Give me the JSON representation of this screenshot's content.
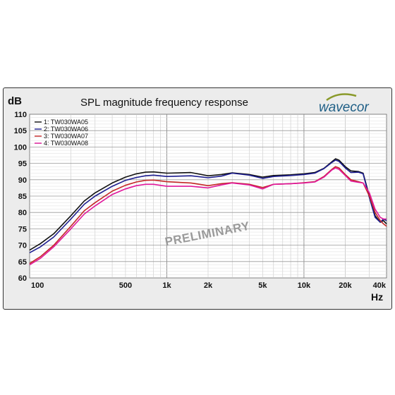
{
  "brand": "wavecor",
  "watermark": "PRELIMINARY",
  "chart_data": {
    "type": "line",
    "title": "SPL magnitude frequency response",
    "ylabel": "dB",
    "xlabel": "Hz",
    "x_scale": "log",
    "xlim": [
      100,
      40000
    ],
    "ylim": [
      60,
      110
    ],
    "grid": true,
    "legend_position": "top-left",
    "y_ticks": [
      60,
      65,
      70,
      75,
      80,
      85,
      90,
      95,
      100,
      105,
      110
    ],
    "x_ticks": [
      {
        "value": 100,
        "label": "100"
      },
      {
        "value": 500,
        "label": "500"
      },
      {
        "value": 1000,
        "label": "1k"
      },
      {
        "value": 2000,
        "label": "2k"
      },
      {
        "value": 5000,
        "label": "5k"
      },
      {
        "value": 10000,
        "label": "10k"
      },
      {
        "value": 20000,
        "label": "20k"
      },
      {
        "value": 40000,
        "label": "40k"
      }
    ],
    "series": [
      {
        "name": "1: TW030WA05",
        "color": "#111111",
        "points": [
          [
            100,
            68.5
          ],
          [
            120,
            70.5
          ],
          [
            150,
            73.5
          ],
          [
            200,
            79
          ],
          [
            250,
            83.5
          ],
          [
            300,
            86
          ],
          [
            400,
            89
          ],
          [
            500,
            90.8
          ],
          [
            600,
            91.8
          ],
          [
            700,
            92.3
          ],
          [
            800,
            92.4
          ],
          [
            1000,
            92
          ],
          [
            1500,
            92.2
          ],
          [
            2000,
            91.2
          ],
          [
            2500,
            91.6
          ],
          [
            3000,
            92.1
          ],
          [
            4000,
            91.6
          ],
          [
            5000,
            90.8
          ],
          [
            6000,
            91.3
          ],
          [
            8000,
            91.5
          ],
          [
            10000,
            91.8
          ],
          [
            12000,
            92.2
          ],
          [
            14000,
            93.5
          ],
          [
            16000,
            95.5
          ],
          [
            17000,
            96.4
          ],
          [
            18000,
            96
          ],
          [
            20000,
            94
          ],
          [
            22000,
            92.7
          ],
          [
            25000,
            92.5
          ],
          [
            27000,
            92
          ],
          [
            30000,
            85
          ],
          [
            33000,
            79
          ],
          [
            36000,
            77
          ],
          [
            38000,
            77.5
          ],
          [
            40000,
            76.5
          ]
        ]
      },
      {
        "name": "2: TW030WA06",
        "color": "#1c1c8f",
        "points": [
          [
            100,
            67.7
          ],
          [
            120,
            69.5
          ],
          [
            150,
            72.5
          ],
          [
            200,
            78
          ],
          [
            250,
            82.5
          ],
          [
            300,
            85
          ],
          [
            400,
            88
          ],
          [
            500,
            89.8
          ],
          [
            600,
            90.7
          ],
          [
            700,
            91.2
          ],
          [
            800,
            91.4
          ],
          [
            1000,
            91
          ],
          [
            1500,
            91.2
          ],
          [
            2000,
            90.6
          ],
          [
            2500,
            91.1
          ],
          [
            3000,
            92
          ],
          [
            4000,
            91.4
          ],
          [
            5000,
            90.4
          ],
          [
            6000,
            91
          ],
          [
            8000,
            91.3
          ],
          [
            10000,
            91.6
          ],
          [
            12000,
            92
          ],
          [
            14000,
            93.4
          ],
          [
            16000,
            95.3
          ],
          [
            17000,
            96
          ],
          [
            18000,
            95.6
          ],
          [
            20000,
            93.6
          ],
          [
            22000,
            92.2
          ],
          [
            25000,
            92.3
          ],
          [
            27000,
            91.8
          ],
          [
            30000,
            84.5
          ],
          [
            33000,
            78.5
          ],
          [
            36000,
            77
          ],
          [
            38000,
            78
          ],
          [
            40000,
            77.5
          ]
        ]
      },
      {
        "name": "3: TW030WA07",
        "color": "#c42727",
        "points": [
          [
            100,
            64.4
          ],
          [
            120,
            66.5
          ],
          [
            150,
            70
          ],
          [
            200,
            75.8
          ],
          [
            250,
            80.5
          ],
          [
            300,
            83
          ],
          [
            400,
            86.5
          ],
          [
            500,
            88.3
          ],
          [
            600,
            89.3
          ],
          [
            700,
            89.8
          ],
          [
            800,
            89.9
          ],
          [
            1000,
            89.4
          ],
          [
            1500,
            89
          ],
          [
            2000,
            88.2
          ],
          [
            2500,
            88.8
          ],
          [
            3000,
            89.1
          ],
          [
            4000,
            88.6
          ],
          [
            5000,
            87.6
          ],
          [
            6000,
            88.6
          ],
          [
            8000,
            88.8
          ],
          [
            10000,
            89.1
          ],
          [
            12000,
            89.4
          ],
          [
            14000,
            91
          ],
          [
            16000,
            93.2
          ],
          [
            17000,
            94
          ],
          [
            18000,
            93.6
          ],
          [
            20000,
            91.6
          ],
          [
            22000,
            90
          ],
          [
            25000,
            89.4
          ],
          [
            27000,
            89
          ],
          [
            30000,
            85
          ],
          [
            33000,
            80
          ],
          [
            36000,
            77.5
          ],
          [
            38000,
            76.5
          ],
          [
            40000,
            75.8
          ]
        ]
      },
      {
        "name": "4: TW030WA08",
        "color": "#e0179b",
        "points": [
          [
            100,
            64
          ],
          [
            120,
            66
          ],
          [
            150,
            69.5
          ],
          [
            200,
            75
          ],
          [
            250,
            79.5
          ],
          [
            300,
            82
          ],
          [
            400,
            85.5
          ],
          [
            500,
            87.2
          ],
          [
            600,
            88.2
          ],
          [
            700,
            88.6
          ],
          [
            800,
            88.6
          ],
          [
            1000,
            88
          ],
          [
            1500,
            88
          ],
          [
            2000,
            87.5
          ],
          [
            2500,
            88.4
          ],
          [
            3000,
            89
          ],
          [
            4000,
            88.4
          ],
          [
            5000,
            87.2
          ],
          [
            6000,
            88.6
          ],
          [
            8000,
            88.8
          ],
          [
            10000,
            89
          ],
          [
            12000,
            89.3
          ],
          [
            14000,
            90.8
          ],
          [
            16000,
            93
          ],
          [
            17000,
            93.6
          ],
          [
            18000,
            93.2
          ],
          [
            20000,
            91.3
          ],
          [
            22000,
            89.6
          ],
          [
            25000,
            89.2
          ],
          [
            27000,
            89
          ],
          [
            30000,
            86
          ],
          [
            33000,
            81
          ],
          [
            36000,
            78.5
          ],
          [
            38000,
            78
          ],
          [
            40000,
            78
          ]
        ]
      }
    ]
  }
}
